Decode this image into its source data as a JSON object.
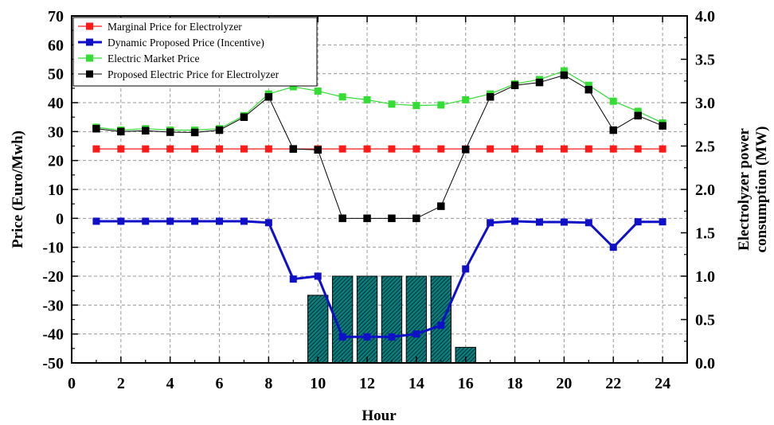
{
  "chart_data": {
    "type": "line",
    "title": "",
    "xlabel": "Hour",
    "ylabel_left": "Price (Euro/Mwh)",
    "ylabel_right_lines": [
      "Electrolyzer power",
      "consumption (MW)"
    ],
    "xlim": [
      0,
      25
    ],
    "xticks": [
      0,
      2,
      4,
      6,
      8,
      10,
      12,
      14,
      16,
      18,
      20,
      22,
      24
    ],
    "ylim_left": [
      -50,
      70
    ],
    "yticks_left": [
      -50,
      -40,
      -30,
      -20,
      -10,
      0,
      10,
      20,
      30,
      40,
      50,
      60,
      70
    ],
    "ylim_right": [
      0,
      4
    ],
    "yticks_right": [
      "0.0",
      "0.5",
      "1.0",
      "1.5",
      "2.0",
      "2.5",
      "3.0",
      "3.5",
      "4.0"
    ],
    "grid": true,
    "legend_position": "top-left",
    "x": [
      1,
      2,
      3,
      4,
      5,
      6,
      7,
      8,
      9,
      10,
      11,
      12,
      13,
      14,
      15,
      16,
      17,
      18,
      19,
      20,
      21,
      22,
      23,
      24
    ],
    "series": [
      {
        "name": "Marginal Price for Electrolyzer",
        "color": "#ff1a1a",
        "line_width": 1.2,
        "values": [
          24,
          24,
          24,
          24,
          24,
          24,
          24,
          24,
          24,
          24,
          24,
          24,
          24,
          24,
          24,
          24,
          24,
          24,
          24,
          24,
          24,
          24,
          24,
          24
        ]
      },
      {
        "name": "Dynamic Proposed Price (Incentive)",
        "color": "#1010c8",
        "line_width": 3,
        "values": [
          -1,
          -1,
          -1,
          -1,
          -1,
          -1,
          -1,
          -1.5,
          -21,
          -20,
          -41,
          -41,
          -41,
          -40,
          -37,
          -17.5,
          -1.5,
          -1,
          -1.3,
          -1.3,
          -1.5,
          -10,
          -1.2,
          -1.2
        ]
      },
      {
        "name": "Electric Market Price",
        "color": "#33dd33",
        "line_width": 1.2,
        "values": [
          31.5,
          30.5,
          31,
          30.5,
          30.5,
          31,
          35.5,
          43,
          45.5,
          44,
          42,
          41,
          39.5,
          39,
          39.2,
          41,
          43,
          46.5,
          48,
          51,
          46,
          40.5,
          37,
          33
        ]
      },
      {
        "name": "Proposed Electric Price for Electrolyzer",
        "color": "#000000",
        "line_width": 1,
        "values": [
          31,
          30,
          30.3,
          29.8,
          29.7,
          30.5,
          35,
          42,
          24,
          23.7,
          0,
          0,
          0,
          0,
          4.2,
          23.8,
          42,
          46,
          47,
          49.5,
          44.5,
          30.5,
          35.5,
          32
        ]
      }
    ],
    "bars": {
      "name": "Electrolyzer power consumption",
      "axis": "right",
      "fill": "#0a8080",
      "x": [
        10,
        11,
        12,
        13,
        14,
        15,
        16
      ],
      "values": [
        0.78,
        1.0,
        1.0,
        1.0,
        1.0,
        1.0,
        0.18
      ]
    }
  }
}
